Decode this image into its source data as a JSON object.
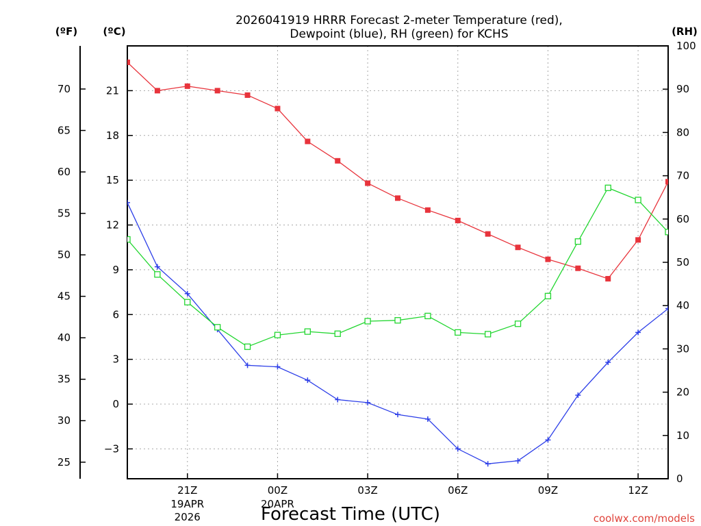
{
  "chart_data": {
    "type": "line",
    "title_line1": "2026041919 HRRR Forecast 2-meter Temperature (red),",
    "title_line2": "Dewpoint (blue), RH (green) for KCHS",
    "xlabel": "Forecast Time (UTC)",
    "credit": "coolwx.com/models",
    "units": {
      "f": "(ºF)",
      "c": "(ºC)",
      "rh": "(RH)"
    },
    "x_hours": [
      19,
      20,
      21,
      22,
      23,
      24,
      25,
      26,
      27,
      28,
      29,
      30,
      31,
      32,
      33,
      34,
      35,
      36,
      37
    ],
    "xlim": [
      19,
      37
    ],
    "x_ticks": [
      {
        "hour": 21,
        "label": "21Z",
        "date": "19APR",
        "year": "2026"
      },
      {
        "hour": 24,
        "label": "00Z",
        "date": "20APR",
        "year": ""
      },
      {
        "hour": 27,
        "label": "03Z",
        "date": "",
        "year": ""
      },
      {
        "hour": 30,
        "label": "06Z",
        "date": "",
        "year": ""
      },
      {
        "hour": 33,
        "label": "09Z",
        "date": "",
        "year": ""
      },
      {
        "hour": 36,
        "label": "12Z",
        "date": "",
        "year": ""
      }
    ],
    "celsius_axis": {
      "min": -5,
      "max": 24,
      "ticks": [
        -3,
        0,
        3,
        6,
        9,
        12,
        15,
        18,
        21
      ],
      "tick_labels": [
        "−3",
        "0",
        "3",
        "6",
        "9",
        "12",
        "15",
        "18",
        "21"
      ]
    },
    "fahrenheit_axis": {
      "ticks": [
        25,
        30,
        35,
        40,
        45,
        50,
        55,
        60,
        65,
        70
      ],
      "tick_labels": [
        "25",
        "30",
        "35",
        "40",
        "45",
        "50",
        "55",
        "60",
        "65",
        "70"
      ]
    },
    "rh_axis": {
      "min": 0,
      "max": 100,
      "ticks": [
        0,
        10,
        20,
        30,
        40,
        50,
        60,
        70,
        80,
        90,
        100
      ],
      "tick_labels": [
        "0",
        "10",
        "20",
        "30",
        "40",
        "50",
        "60",
        "70",
        "80",
        "90",
        "100"
      ]
    },
    "series": [
      {
        "name": "Temperature",
        "unit": "C",
        "color": "#e8343c",
        "marker": "filled-square",
        "values": [
          22.9,
          21.0,
          21.3,
          21.0,
          20.7,
          19.8,
          17.6,
          16.3,
          14.8,
          13.8,
          13.0,
          12.3,
          11.4,
          10.5,
          9.7,
          9.1,
          8.4,
          11.0,
          14.9
        ]
      },
      {
        "name": "Dewpoint",
        "unit": "C",
        "color": "#2c3ee8",
        "marker": "plus",
        "values": [
          13.5,
          9.2,
          7.4,
          5.0,
          2.6,
          2.5,
          1.6,
          0.3,
          0.1,
          -0.7,
          -1.0,
          -3.0,
          -4.0,
          -3.8,
          -2.4,
          0.6,
          2.8,
          4.8,
          6.4
        ]
      },
      {
        "name": "RH",
        "unit": "%",
        "color": "#22d630",
        "marker": "open-square",
        "values": [
          55.3,
          47.2,
          40.8,
          35.0,
          30.5,
          33.2,
          34.0,
          33.5,
          36.4,
          36.6,
          37.6,
          33.8,
          33.4,
          35.8,
          42.2,
          54.8,
          67.2,
          64.4,
          57.0
        ]
      }
    ]
  }
}
